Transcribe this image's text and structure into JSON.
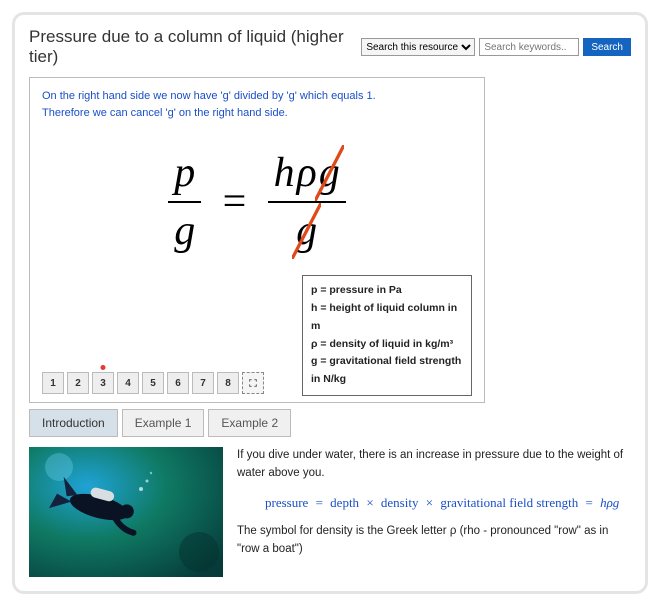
{
  "header": {
    "title": "Pressure due to a column of liquid (higher tier)",
    "search_select_value": "Search this resource",
    "search_placeholder": "Search keywords..",
    "search_button": "Search"
  },
  "panel": {
    "explain_line1": "On the right hand side we now have 'g' divided by 'g' which equals 1.",
    "explain_line2": "Therefore we can cancel 'g' on the right hand side.",
    "equation": {
      "left_num": "p",
      "left_den": "g",
      "equals": "=",
      "right_num_h": "h",
      "right_num_rho": "ρ",
      "right_num_g": "g",
      "right_den": "g",
      "strike_color": "#e04a1a"
    },
    "steps": [
      "1",
      "2",
      "3",
      "4",
      "5",
      "6",
      "7",
      "8"
    ],
    "current_step_index": 2,
    "legend": {
      "l1": "p = pressure in Pa",
      "l2": "h = height of liquid column in m",
      "l3": "ρ = density of liquid in kg/m³",
      "l4": "g = gravitational field strength in N/kg"
    }
  },
  "tabs": {
    "items": [
      "Introduction",
      "Example 1",
      "Example 2"
    ],
    "active_index": 0
  },
  "intro": {
    "p1": "If you dive under water, there is an increase in pressure due to the weight of water above you.",
    "formula_text": {
      "pressure": "pressure",
      "depth": "depth",
      "density": "density",
      "grav": "gravitational field strength",
      "rhs": "hρg"
    },
    "p2": "The symbol for density is the Greek letter ρ (rho - pronounced \"row\" as in \"row a boat\")"
  },
  "colors": {
    "link_blue": "#1a4fc7",
    "search_button_bg": "#1565c0",
    "border_grey": "#bbbbbb",
    "frame_grey": "#e4e4e4",
    "dot_red": "#e53935"
  }
}
